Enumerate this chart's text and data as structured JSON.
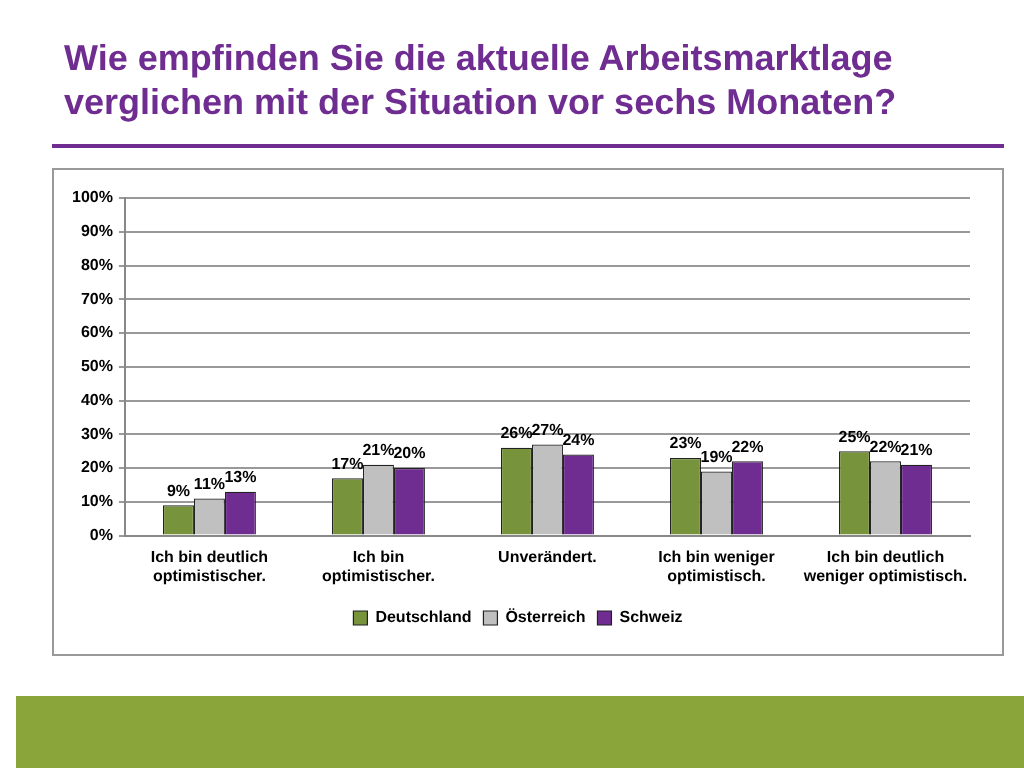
{
  "chart_data": {
    "type": "bar",
    "title": "Wie empfinden Sie die aktuelle Arbeitsmarktlage verglichen mit der Situation vor sechs Monaten?",
    "categories": [
      "Ich bin deutlich optimistischer.",
      "Ich bin optimistischer.",
      "Unverändert.",
      "Ich bin weniger optimistisch.",
      "Ich bin deutlich weniger optimistisch."
    ],
    "series": [
      {
        "name": "Deutschland",
        "color": "#77933c",
        "values": [
          9,
          17,
          26,
          23,
          25
        ],
        "value_labels": [
          "9%",
          "17%",
          "26%",
          "23%",
          "25%"
        ]
      },
      {
        "name": "Österreich",
        "color": "#c0c0c0",
        "values": [
          11,
          21,
          27,
          19,
          22
        ],
        "value_labels": [
          "11%",
          "21%",
          "27%",
          "19%",
          "22%"
        ]
      },
      {
        "name": "Schweiz",
        "color": "#6f2c91",
        "values": [
          13,
          20,
          24,
          22,
          21
        ],
        "value_labels": [
          "13%",
          "20%",
          "24%",
          "22%",
          "21%"
        ]
      }
    ],
    "ylim": [
      0,
      100
    ],
    "yticks": [
      {
        "value": 0,
        "label": "0%"
      },
      {
        "value": 10,
        "label": "10%"
      },
      {
        "value": 20,
        "label": "20%"
      },
      {
        "value": 30,
        "label": "30%"
      },
      {
        "value": 40,
        "label": "40%"
      },
      {
        "value": 50,
        "label": "50%"
      },
      {
        "value": 60,
        "label": "60%"
      },
      {
        "value": 70,
        "label": "70%"
      },
      {
        "value": 80,
        "label": "80%"
      },
      {
        "value": 90,
        "label": "90%"
      },
      {
        "value": 100,
        "label": "100%"
      }
    ],
    "grid": "y",
    "legend": "bottom"
  }
}
